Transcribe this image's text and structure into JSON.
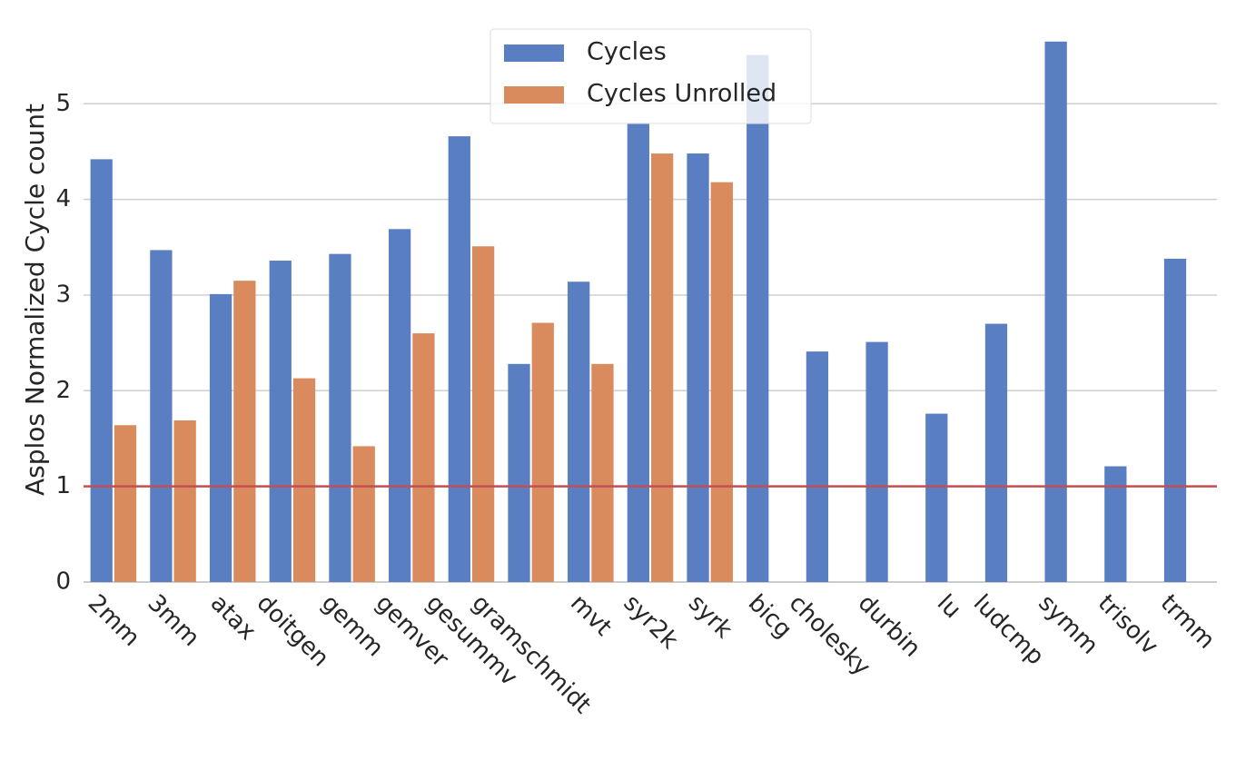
{
  "chart_data": {
    "type": "bar",
    "ylabel": "Asplos Normalized Cycle count",
    "categories": [
      "2mm",
      "3mm",
      "atax",
      "doitgen",
      "gemm",
      "gemver",
      "gesummv",
      "gramschmidt",
      "mvt",
      "syr2k",
      "syrk",
      "bicg",
      "cholesky",
      "durbin",
      "lu",
      "ludcmp",
      "symm",
      "trisolv",
      "trmm"
    ],
    "series": [
      {
        "name": "Cycles",
        "color": "#5a7ec2",
        "values": [
          4.42,
          3.47,
          3.01,
          3.36,
          3.43,
          3.69,
          4.66,
          2.28,
          3.14,
          4.8,
          4.48,
          5.51,
          2.41,
          2.51,
          1.76,
          2.7,
          5.65,
          1.21,
          3.38
        ]
      },
      {
        "name": "Cycles Unrolled",
        "color": "#d98b5e",
        "values": [
          1.64,
          1.69,
          3.15,
          2.13,
          1.42,
          2.6,
          3.51,
          2.71,
          2.28,
          4.48,
          4.18,
          null,
          null,
          null,
          null,
          null,
          null,
          null,
          null
        ]
      }
    ],
    "ylim": [
      0,
      5.8
    ],
    "yticks": [
      0,
      1,
      2,
      3,
      4,
      5
    ],
    "grid": true,
    "hline": {
      "value": 1,
      "color": "#c44e52"
    },
    "legend": "upper center"
  }
}
